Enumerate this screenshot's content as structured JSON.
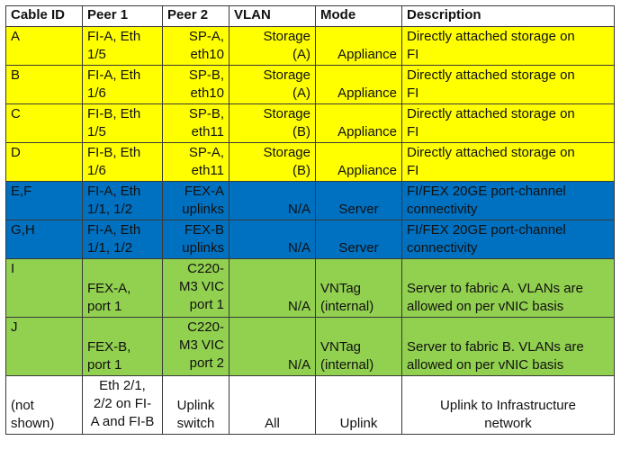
{
  "table": {
    "headers": {
      "cable_id": "Cable ID",
      "peer1": "Peer 1",
      "peer2": "Peer 2",
      "vlan": "VLAN",
      "mode": "Mode",
      "description": "Description"
    },
    "rows": [
      {
        "cable_id": "A",
        "peer1": [
          "FI-A, Eth",
          "1/5"
        ],
        "peer2": [
          "SP-A,",
          "eth10"
        ],
        "vlan": [
          "Storage",
          "(A)"
        ],
        "mode": [
          "Appliance"
        ],
        "description": [
          "Directly attached storage on",
          "FI"
        ]
      },
      {
        "cable_id": "B",
        "peer1": [
          "FI-A, Eth",
          "1/6"
        ],
        "peer2": [
          "SP-B,",
          "eth10"
        ],
        "vlan": [
          "Storage",
          "(A)"
        ],
        "mode": [
          "Appliance"
        ],
        "description": [
          "Directly attached storage on",
          "FI"
        ]
      },
      {
        "cable_id": "C",
        "peer1": [
          "FI-B, Eth",
          "1/5"
        ],
        "peer2": [
          "SP-B,",
          "eth11"
        ],
        "vlan": [
          "Storage",
          "(B)"
        ],
        "mode": [
          "Appliance"
        ],
        "description": [
          "Directly attached storage on",
          "FI"
        ]
      },
      {
        "cable_id": "D",
        "peer1": [
          "FI-B, Eth",
          "1/6"
        ],
        "peer2": [
          "SP-A,",
          "eth11"
        ],
        "vlan": [
          "Storage",
          "(B)"
        ],
        "mode": [
          "Appliance"
        ],
        "description": [
          "Directly attached storage on",
          "FI"
        ]
      },
      {
        "cable_id": "E,F",
        "peer1": [
          "FI-A, Eth",
          "1/1, 1/2"
        ],
        "peer2": [
          "FEX-A",
          "uplinks"
        ],
        "vlan": [
          "N/A"
        ],
        "mode": [
          "Server"
        ],
        "description": [
          "FI/FEX 20GE port-channel",
          "connectivity"
        ]
      },
      {
        "cable_id": "G,H",
        "peer1": [
          "FI-A, Eth",
          "1/1, 1/2"
        ],
        "peer2": [
          "FEX-B",
          "uplinks"
        ],
        "vlan": [
          "N/A"
        ],
        "mode": [
          "Server"
        ],
        "description": [
          "FI/FEX 20GE port-channel",
          "connectivity"
        ]
      },
      {
        "cable_id": "I",
        "peer1": [
          "FEX-A,",
          "port 1"
        ],
        "peer2": [
          "C220-",
          "M3 VIC",
          "port 1"
        ],
        "vlan": [
          "N/A"
        ],
        "mode": [
          "VNTag",
          "(internal)"
        ],
        "description": [
          "Server to fabric A. VLANs are",
          "allowed on per vNIC basis"
        ]
      },
      {
        "cable_id": "J",
        "peer1": [
          "FEX-B,",
          "port 1"
        ],
        "peer2": [
          "C220-",
          "M3 VIC",
          "port 2"
        ],
        "vlan": [
          "N/A"
        ],
        "mode": [
          "VNTag",
          "(internal)"
        ],
        "description": [
          "Server to fabric B. VLANs are",
          "allowed on per vNIC basis"
        ]
      },
      {
        "cable_id": [
          "(not",
          "shown)"
        ],
        "peer1": [
          "Eth 2/1,",
          "2/2 on FI-",
          "A and FI-B"
        ],
        "peer2": [
          "Uplink",
          "switch"
        ],
        "vlan": [
          "All"
        ],
        "mode": [
          "Uplink"
        ],
        "description": [
          "Uplink to Infrastructure",
          "network"
        ]
      }
    ]
  },
  "colors": {
    "storage_rows": "#ffff00",
    "server_rows": "#0070c0",
    "vntag_rows": "#92d050",
    "uplink_row": "#ffffff",
    "border": "#3a3a3a"
  }
}
